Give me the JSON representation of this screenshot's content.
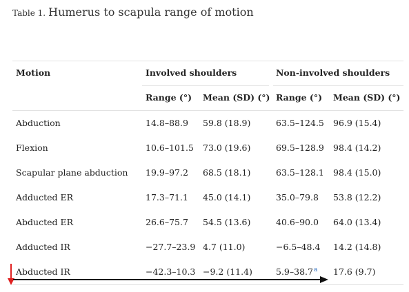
{
  "caption": {
    "label": "Table 1.",
    "title": "Humerus to scapula range of motion"
  },
  "headers": {
    "motion": "Motion",
    "involved": "Involved shoulders",
    "noninvolved": "Non-involved shoulders",
    "range": "Range (°)",
    "mean": "Mean (SD) (°)"
  },
  "rows": [
    {
      "motion": "Abduction",
      "inv_range": "14.8–88.9",
      "inv_mean": "59.8 (18.9)",
      "non_range": "63.5–124.5",
      "non_mean": "96.9 (15.4)"
    },
    {
      "motion": "Flexion",
      "inv_range": "10.6–101.5",
      "inv_mean": "73.0 (19.6)",
      "non_range": "69.5–128.9",
      "non_mean": "98.4 (14.2)"
    },
    {
      "motion": "Scapular plane abduction",
      "inv_range": "19.9–97.2",
      "inv_mean": "68.5 (18.1)",
      "non_range": "63.5–128.1",
      "non_mean": "98.4 (15.0)"
    },
    {
      "motion": "Adducted ER",
      "inv_range": "17.3–71.1",
      "inv_mean": "45.0 (14.1)",
      "non_range": "35.0–79.8",
      "non_mean": "53.8 (12.2)"
    },
    {
      "motion": "Abducted ER",
      "inv_range": "26.6–75.7",
      "inv_mean": "54.5 (13.6)",
      "non_range": "40.6–90.0",
      "non_mean": "64.0 (13.4)"
    },
    {
      "motion": "Adducted IR",
      "inv_range": "−27.7–23.9",
      "inv_mean": "4.7 (11.0)",
      "non_range": "−6.5–48.4",
      "non_mean": "14.2 (14.8)"
    },
    {
      "motion": "Abducted IR",
      "inv_range": "−42.3–10.3",
      "inv_mean": "−9.2 (11.4)",
      "non_range": "5.9–38.7",
      "non_range_note": "a",
      "non_mean": "17.6 (9.7)"
    }
  ],
  "colors": {
    "arrow_red": "#e02020",
    "arrow_black": "#111111",
    "footnote_link": "#2a6cc0"
  }
}
